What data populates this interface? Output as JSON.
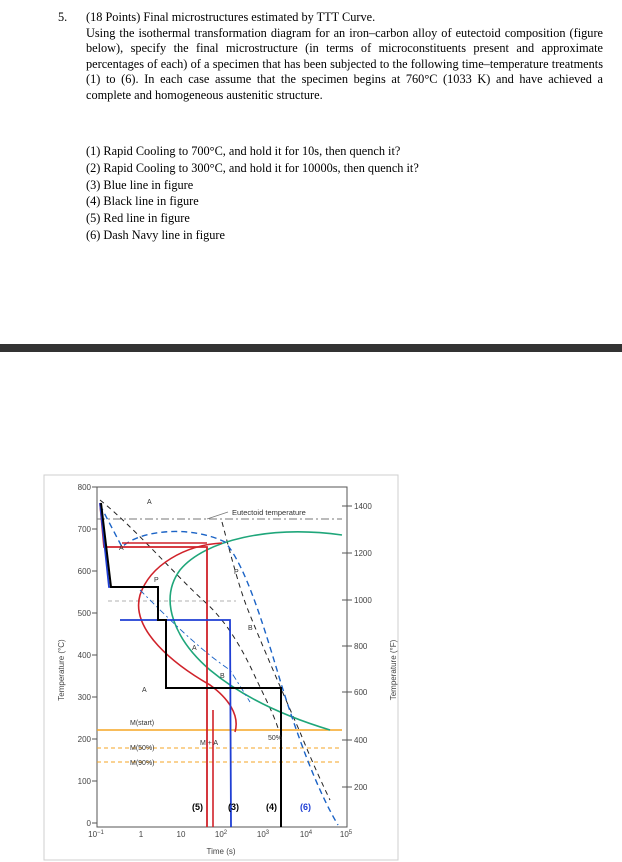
{
  "question": {
    "number": "5.",
    "heading": "(18 Points) Final microstructures estimated by TTT Curve.",
    "body": "Using the isothermal transformation diagram for an iron–carbon alloy of eutectoid composition (figure below), specify the final microstructure (in terms of microconstituents present and approximate percentages of each) of a specimen that has been subjected to the following time–temperature treatments (1) to (6). In each case assume that the specimen begins at 760°C (1033 K) and have achieved a complete and homogeneous austenitic structure.",
    "items": [
      "(1) Rapid Cooling to 700°C, and hold it for 10s, then quench it?",
      "(2) Rapid Cooling to 300°C, and hold it for 10000s, then quench it?",
      "(3) Blue line in figure",
      "(4) Black line in figure",
      "(5) Red line in figure",
      "(6) Dash Navy line in figure"
    ]
  },
  "figure": {
    "y_axis_left_title": "Temperature (°C)",
    "y_axis_right_title": "Temperature (°F)",
    "x_axis_title": "Time (s)",
    "y_ticks_c": [
      "800",
      "700",
      "600",
      "500",
      "400",
      "300",
      "200",
      "100",
      "0"
    ],
    "y_ticks_f": [
      "1400",
      "1200",
      "1000",
      "800",
      "600",
      "400",
      "200"
    ],
    "x_ticks": [
      {
        "base": "10",
        "exp": "−1"
      },
      {
        "base": "1",
        "exp": ""
      },
      {
        "base": "10",
        "exp": ""
      },
      {
        "base": "10",
        "exp": "2"
      },
      {
        "base": "10",
        "exp": "3"
      },
      {
        "base": "10",
        "exp": "4"
      },
      {
        "base": "10",
        "exp": "5"
      }
    ],
    "labels": {
      "eutectoid": "Eutectoid temperature",
      "austenite_top": "A",
      "austenite_mid": "A",
      "austenite_low": "A",
      "austenite_small": "A",
      "p_upper": "P",
      "p_small": "P",
      "b_upper": "B",
      "b_small": "B",
      "m_start": "M(start)",
      "m50": "M(50%)",
      "m90": "M(90%)",
      "m_a": "M + A",
      "pct50": "50%"
    },
    "path_labels": [
      "(5)",
      "(3)",
      "(4)",
      "(6)"
    ],
    "colors": {
      "red": "#d0222a",
      "blue": "#1f3fd4",
      "black": "#000000",
      "green": "#1fa67a",
      "navy_dash": "#1b63c6",
      "orange": "#f5a524",
      "label_blue": "#1f3fd4"
    }
  }
}
